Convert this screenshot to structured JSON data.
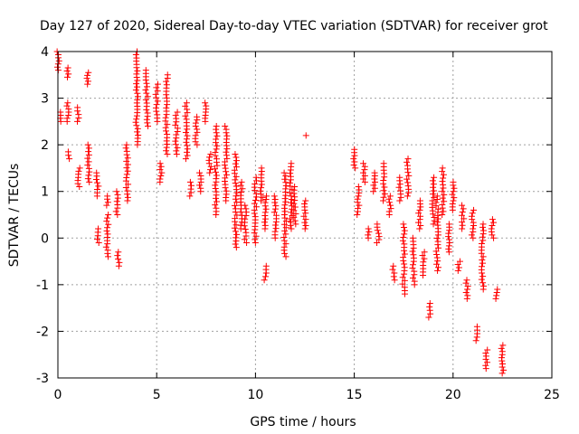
{
  "chart_data": {
    "type": "scatter",
    "title": "Day 127 of 2020, Sidereal Day-to-day VTEC variation (SDTVAR) for receiver grot",
    "xlabel": "GPS time / hours",
    "ylabel": "SDTVAR / TECUs",
    "xlim": [
      0,
      25
    ],
    "ylim": [
      -3,
      4
    ],
    "xticks": [
      0,
      5,
      10,
      15,
      20,
      25
    ],
    "yticks": [
      -3,
      -2,
      -1,
      0,
      1,
      2,
      3,
      4
    ],
    "grid": true,
    "marker": "+",
    "colors": {
      "series": "#ff0000",
      "grid": "#a0a0a0",
      "axis": "#000000"
    },
    "series": [
      {
        "name": "SDTVAR",
        "clusters": [
          [
            0.0,
            3.6,
            4.0
          ],
          [
            0.1,
            2.5,
            2.7
          ],
          [
            0.5,
            3.45,
            3.65
          ],
          [
            0.5,
            2.5,
            2.9
          ],
          [
            0.55,
            1.7,
            1.85
          ],
          [
            1.0,
            2.5,
            2.8
          ],
          [
            1.05,
            1.1,
            1.5
          ],
          [
            1.5,
            3.3,
            3.55
          ],
          [
            1.55,
            1.2,
            2.0
          ],
          [
            2.0,
            0.9,
            1.4
          ],
          [
            2.05,
            -0.1,
            0.2
          ],
          [
            2.5,
            0.7,
            0.9
          ],
          [
            2.5,
            -0.4,
            0.5
          ],
          [
            3.0,
            0.5,
            1.0
          ],
          [
            3.05,
            -0.6,
            -0.3
          ],
          [
            3.5,
            0.8,
            2.0
          ],
          [
            4.0,
            2.0,
            4.0
          ],
          [
            4.5,
            2.4,
            3.6
          ],
          [
            5.0,
            2.5,
            3.3
          ],
          [
            5.2,
            1.2,
            1.6
          ],
          [
            5.5,
            1.8,
            3.5
          ],
          [
            6.0,
            1.8,
            2.7
          ],
          [
            6.5,
            1.7,
            2.9
          ],
          [
            6.7,
            0.9,
            1.2
          ],
          [
            7.0,
            2.0,
            2.6
          ],
          [
            7.2,
            1.0,
            1.4
          ],
          [
            7.5,
            2.5,
            2.9
          ],
          [
            7.7,
            1.4,
            1.8
          ],
          [
            8.0,
            0.5,
            2.4
          ],
          [
            8.5,
            0.8,
            2.4
          ],
          [
            9.0,
            -0.2,
            1.8
          ],
          [
            9.3,
            0.2,
            1.2
          ],
          [
            9.5,
            -0.1,
            0.7
          ],
          [
            10.0,
            -0.1,
            1.3
          ],
          [
            10.3,
            0.8,
            1.5
          ],
          [
            10.5,
            -0.9,
            -0.6
          ],
          [
            10.5,
            0.2,
            0.9
          ],
          [
            11.0,
            0.0,
            0.9
          ],
          [
            11.5,
            -0.4,
            1.4
          ],
          [
            11.8,
            0.2,
            1.6
          ],
          [
            12.0,
            0.3,
            1.1
          ],
          [
            12.5,
            2.2,
            2.2
          ],
          [
            12.5,
            0.2,
            0.8
          ],
          [
            15.0,
            1.5,
            1.9
          ],
          [
            15.2,
            0.5,
            1.1
          ],
          [
            15.5,
            1.2,
            1.6
          ],
          [
            15.7,
            0.0,
            0.2
          ],
          [
            16.0,
            1.0,
            1.4
          ],
          [
            16.2,
            -0.1,
            0.3
          ],
          [
            16.5,
            0.8,
            1.6
          ],
          [
            16.8,
            0.5,
            0.9
          ],
          [
            17.0,
            -0.9,
            -0.6
          ],
          [
            17.3,
            0.8,
            1.3
          ],
          [
            17.5,
            -1.2,
            0.3
          ],
          [
            17.7,
            0.9,
            1.7
          ],
          [
            18.0,
            -1.0,
            0.0
          ],
          [
            18.3,
            0.2,
            0.8
          ],
          [
            18.5,
            -0.8,
            -0.3
          ],
          [
            18.8,
            -1.7,
            -1.4
          ],
          [
            19.0,
            0.3,
            1.3
          ],
          [
            19.2,
            -0.7,
            0.9
          ],
          [
            19.5,
            0.5,
            1.5
          ],
          [
            19.8,
            -0.3,
            0.3
          ],
          [
            20.0,
            0.6,
            1.2
          ],
          [
            20.3,
            -0.7,
            -0.5
          ],
          [
            20.5,
            0.2,
            0.7
          ],
          [
            20.7,
            -1.3,
            -0.9
          ],
          [
            21.0,
            0.0,
            0.6
          ],
          [
            21.2,
            -2.2,
            -1.9
          ],
          [
            21.5,
            -1.1,
            0.3
          ],
          [
            21.7,
            -2.8,
            -2.4
          ],
          [
            22.0,
            0.0,
            0.4
          ],
          [
            22.2,
            -1.3,
            -1.1
          ],
          [
            22.5,
            -2.9,
            -2.3
          ]
        ]
      }
    ]
  }
}
